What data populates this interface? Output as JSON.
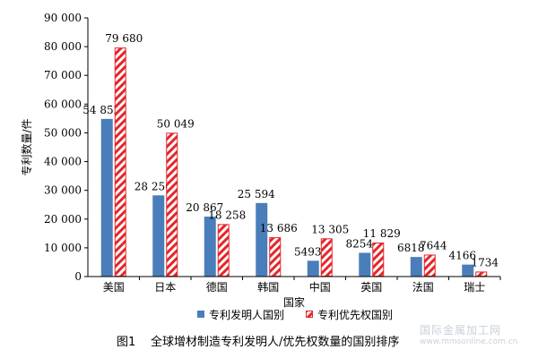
{
  "chart_data": {
    "type": "bar",
    "categories": [
      "美国",
      "日本",
      "德国",
      "韩国",
      "中国",
      "英国",
      "法国",
      "瑞士"
    ],
    "series": [
      {
        "name": "专利发明人国别",
        "values": [
          54852,
          28250,
          20867,
          25594,
          5493,
          8254,
          6818,
          4166
        ],
        "labels": [
          "54 852",
          "28 250",
          "20 867",
          "25 594",
          "5493",
          "8254",
          "6818",
          "4166"
        ],
        "style": "solid",
        "color": "#4a7ebb"
      },
      {
        "name": "专利优先权国别",
        "values": [
          79680,
          50049,
          18258,
          13686,
          13305,
          11829,
          7644,
          1734
        ],
        "labels": [
          "79 680",
          "50 049",
          "18 258",
          "13 686",
          "13 305",
          "11 829",
          "7644",
          "1734"
        ],
        "style": "hatched",
        "color": "#e3262b"
      }
    ],
    "ylim": [
      0,
      90000
    ],
    "yticks": [
      0,
      10000,
      20000,
      30000,
      40000,
      50000,
      60000,
      70000,
      80000,
      90000
    ],
    "ytick_labels": [
      "0",
      "10 000",
      "20 000",
      "30 000",
      "40 000",
      "50 000",
      "60 000",
      "70 000",
      "80 000",
      "90 000"
    ],
    "xlabel": "国家",
    "ylabel": "专利数量/件",
    "legend_position": "bottom",
    "grid": false
  },
  "caption": {
    "number": "图1",
    "text": "全球增材制造专利发明人/优先权数量的国别排序"
  },
  "watermark": {
    "line1": "国际金属加工网",
    "line2": "www.mmsonline.com.cn"
  }
}
